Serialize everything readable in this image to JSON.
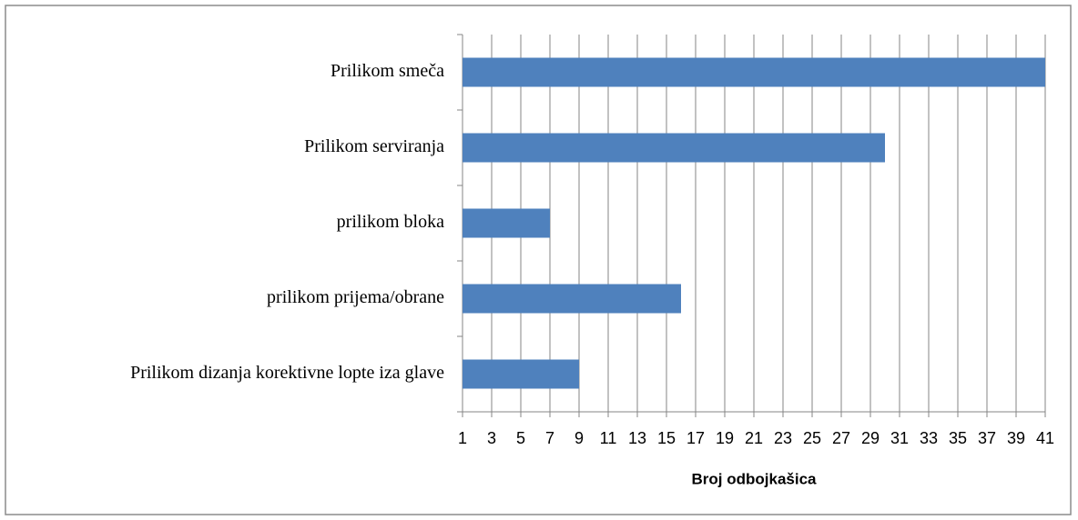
{
  "chart_data": {
    "type": "bar",
    "orientation": "horizontal",
    "x_label": "Broj odbojkašica",
    "categories": [
      "Prilikom smeča",
      "Prilikom serviranja",
      "prilikom bloka",
      "prilikom prijema/obrane",
      "Prilikom dizanja korektivne lopte iza glave"
    ],
    "values": [
      41,
      30,
      7,
      16,
      9
    ],
    "color": "#4f81bd",
    "xlim": [
      1,
      41
    ],
    "xticks": [
      1,
      3,
      5,
      7,
      9,
      11,
      13,
      15,
      17,
      19,
      21,
      23,
      25,
      27,
      29,
      31,
      33,
      35,
      37,
      39,
      41
    ],
    "grid": true
  }
}
